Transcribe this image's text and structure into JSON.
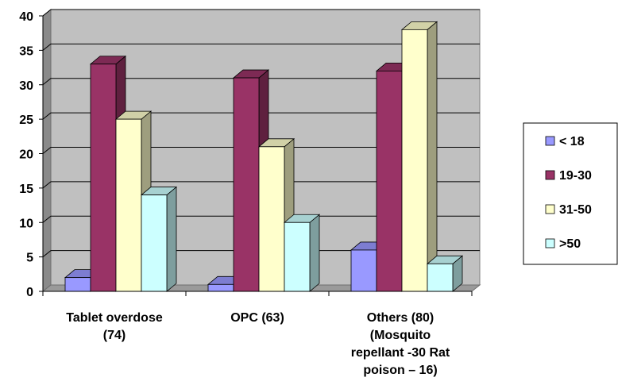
{
  "chart_data": {
    "type": "bar",
    "style": "3d-clustered-column",
    "categories": [
      [
        "Tablet overdose",
        "(74)"
      ],
      [
        "OPC (63)"
      ],
      [
        "Others  (80)",
        "(Mosquito",
        "repellant -30 Rat",
        "poison – 16)"
      ]
    ],
    "series": [
      {
        "name": "< 18",
        "color": "#9999ff",
        "values": [
          2,
          1,
          6
        ]
      },
      {
        "name": "19-30",
        "color": "#993366",
        "values": [
          33,
          31,
          32
        ]
      },
      {
        "name": "31-50",
        "color": "#ffffcc",
        "values": [
          25,
          21,
          38
        ]
      },
      {
        "name": ">50",
        "color": "#ccffff",
        "values": [
          14,
          10,
          4
        ]
      }
    ],
    "yticks": [
      0,
      5,
      10,
      15,
      20,
      25,
      30,
      35,
      40
    ],
    "ylim": [
      0,
      40
    ],
    "grid": true,
    "wall_color": "#c0c0c0",
    "legend_position": "right"
  }
}
